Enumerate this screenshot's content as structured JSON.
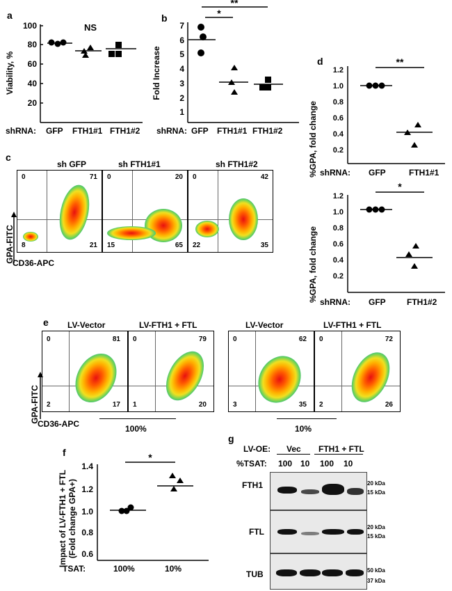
{
  "panel_a": {
    "letter": "a",
    "ns": "NS",
    "ylabel": "Viability, %",
    "shrna": "shRNA:",
    "groups": [
      "GFP",
      "FTH1#1",
      "FTH1#2"
    ],
    "yticks": [
      "100",
      "80",
      "60",
      "40",
      "20"
    ]
  },
  "panel_b": {
    "letter": "b",
    "ylabel": "Fold Increase",
    "shrna": "shRNA:",
    "groups": [
      "GFP",
      "FTH1#1",
      "FTH1#2"
    ],
    "yticks": [
      "7",
      "6",
      "5",
      "4",
      "3",
      "2",
      "1"
    ],
    "sig1": "*",
    "sig2": "**"
  },
  "panel_c": {
    "letter": "c",
    "titles": [
      "sh GFP",
      "sh FTH1#1",
      "sh FTH1#2"
    ],
    "ylabel": "GPA-FITC",
    "xlabel": "CD36-APC",
    "quadrants": [
      {
        "ul": "0",
        "ur": "71",
        "ll": "8",
        "lr": "21"
      },
      {
        "ul": "0",
        "ur": "20",
        "ll": "15",
        "lr": "65"
      },
      {
        "ul": "0",
        "ur": "42",
        "ll": "22",
        "lr": "35"
      }
    ]
  },
  "panel_d": {
    "letter": "d",
    "ylabel": "%GPA, fold change",
    "yticks": [
      "1.2",
      "1.0",
      "0.8",
      "0.6",
      "0.4",
      "0.2"
    ],
    "shrna": "shRNA:",
    "top_groups": [
      "GFP",
      "FTH1#1"
    ],
    "bottom_groups": [
      "GFP",
      "FTH1#2"
    ],
    "sig_top": "**",
    "sig_bottom": "*"
  },
  "panel_e": {
    "letter": "e",
    "titles": [
      "LV-Vector",
      "LV-FTH1 + FTL",
      "LV-Vector",
      "LV-FTH1 + FTL"
    ],
    "ylabel": "GPA-FITC",
    "xlabel": "CD36-APC",
    "conditions": [
      "100%",
      "10%"
    ],
    "quadrants": [
      {
        "ul": "0",
        "ur": "81",
        "ll": "2",
        "lr": "17"
      },
      {
        "ul": "0",
        "ur": "79",
        "ll": "1",
        "lr": "20"
      },
      {
        "ul": "0",
        "ur": "62",
        "ll": "3",
        "lr": "35"
      },
      {
        "ul": "0",
        "ur": "72",
        "ll": "2",
        "lr": "26"
      }
    ]
  },
  "panel_f": {
    "letter": "f",
    "ylabel1": "Impact of LV-FTH1 + FTL",
    "ylabel2": "(Fold change GPA+)",
    "yticks": [
      "1.4",
      "1.2",
      "1.0",
      "0.8",
      "0.6"
    ],
    "tsat": "TSAT:",
    "groups": [
      "100%",
      "10%"
    ],
    "sig": "*"
  },
  "panel_g": {
    "letter": "g",
    "lvoe": "LV-OE:",
    "vec": "Vec",
    "fth_ftl": "FTH1 + FTL",
    "tsat": "%TSAT:",
    "tsat_values": [
      "100",
      "10",
      "100",
      "10"
    ],
    "rows": [
      {
        "name": "FTH1",
        "markers": [
          "20 kDa",
          "15 kDa"
        ]
      },
      {
        "name": "FTL",
        "markers": [
          "20 kDa",
          "15 kDa"
        ]
      },
      {
        "name": "TUB",
        "markers": [
          "50 kDa",
          "37 kDa"
        ]
      }
    ]
  }
}
